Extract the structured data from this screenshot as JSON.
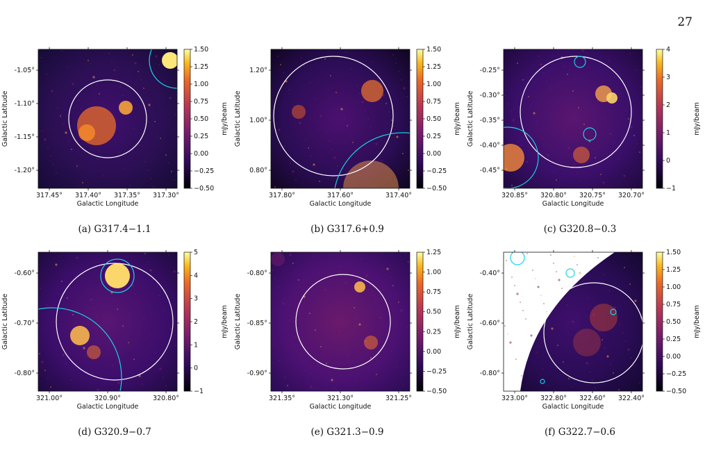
{
  "page_number": "27",
  "colorbar_label": "mJy/beam",
  "x_axis_label": "Galactic Longitude",
  "y_axis_label": "Galactic Latitude",
  "panels": [
    {
      "caption": "(a) G317.4−1.1",
      "x_ticks": [
        "317.45°",
        "317.40°",
        "317.35°",
        "317.30°"
      ],
      "y_ticks": [
        "-1.05°",
        "-1.10°",
        "-1.15°",
        "-1.20°"
      ],
      "cbar_ticks": [
        "1.50",
        "1.25",
        "1.00",
        "0.75",
        "0.50",
        "0.25",
        "0.00",
        "−0.25",
        "−0.50"
      ],
      "image_colors": [
        "#2a0f52",
        "#3f0f6e",
        "#160b36"
      ]
    },
    {
      "caption": "(b) G317.6+0.9",
      "x_ticks": [
        "317.80°",
        "317.60°",
        "317.40°"
      ],
      "y_ticks": [
        "1.20°",
        "1.00°",
        "0.80°"
      ],
      "cbar_ticks": [
        "1.50",
        "1.25",
        "1.00",
        "0.75",
        "0.50",
        "0.25",
        "0.00",
        "−0.25",
        "−0.50"
      ],
      "image_colors": [
        "#2b0d55",
        "#4c1070",
        "#100621"
      ]
    },
    {
      "caption": "(c) G320.8−0.3",
      "x_ticks": [
        "320.85°",
        "320.80°",
        "320.75°",
        "320.70°"
      ],
      "y_ticks": [
        "-0.25°",
        "-0.30°",
        "-0.35°",
        "-0.40°",
        "-0.45°"
      ],
      "cbar_ticks": [
        "4",
        "3",
        "2",
        "1",
        "0",
        "−1"
      ],
      "image_colors": [
        "#3a0f6a",
        "#5a1670",
        "#20093f"
      ]
    },
    {
      "caption": "(d) G320.9−0.7",
      "x_ticks": [
        "321.00°",
        "320.90°",
        "320.80°"
      ],
      "y_ticks": [
        "-0.60°",
        "-0.70°",
        "-0.80°"
      ],
      "cbar_ticks": [
        "5",
        "4",
        "3",
        "2",
        "1",
        "0",
        "−1"
      ],
      "image_colors": [
        "#3c0e6b",
        "#581672",
        "#1e0a40"
      ]
    },
    {
      "caption": "(e) G321.3−0.9",
      "x_ticks": [
        "321.35°",
        "321.30°",
        "321.25°"
      ],
      "y_ticks": [
        "-0.80°",
        "-0.85°",
        "-0.90°"
      ],
      "cbar_ticks": [
        "1.25",
        "1.00",
        "0.75",
        "0.50",
        "0.25",
        "0.00",
        "−0.25",
        "−0.50"
      ],
      "image_colors": [
        "#4b1172",
        "#6a1a6b",
        "#2a0c55"
      ]
    },
    {
      "caption": "(f) G322.7−0.6",
      "x_ticks": [
        "323.00°",
        "322.80°",
        "322.60°",
        "322.40°"
      ],
      "y_ticks": [
        "-0.40°",
        "-0.60°",
        "-0.80°"
      ],
      "cbar_ticks": [
        "1.50",
        "1.25",
        "1.00",
        "0.75",
        "0.50",
        "0.25",
        "0.00",
        "−0.25",
        "−0.50"
      ],
      "image_colors": [
        "#2a0c55",
        "#3e0f6b",
        "#140830"
      ]
    }
  ]
}
